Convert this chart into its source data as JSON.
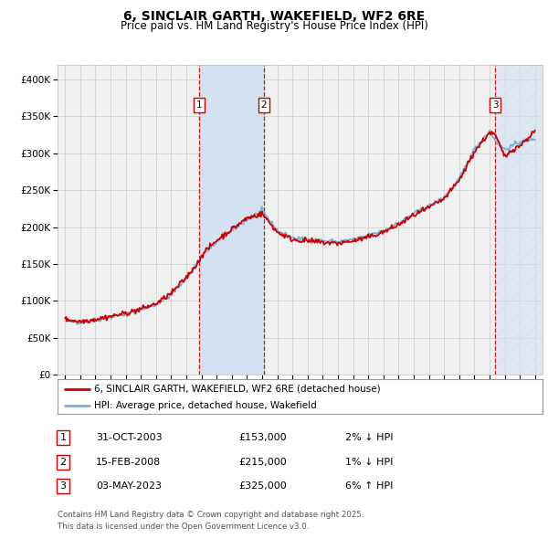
{
  "title": "6, SINCLAIR GARTH, WAKEFIELD, WF2 6RE",
  "subtitle": "Price paid vs. HM Land Registry's House Price Index (HPI)",
  "legend_line1": "6, SINCLAIR GARTH, WAKEFIELD, WF2 6RE (detached house)",
  "legend_line2": "HPI: Average price, detached house, Wakefield",
  "footer1": "Contains HM Land Registry data © Crown copyright and database right 2025.",
  "footer2": "This data is licensed under the Open Government Licence v3.0.",
  "transactions": [
    {
      "num": 1,
      "date": "31-OCT-2003",
      "price": 153000,
      "pct": "2%",
      "dir": "↓",
      "year_x": 2003.83
    },
    {
      "num": 2,
      "date": "15-FEB-2008",
      "price": 215000,
      "pct": "1%",
      "dir": "↓",
      "year_x": 2008.12
    },
    {
      "num": 3,
      "date": "03-MAY-2023",
      "price": 325000,
      "pct": "6%",
      "dir": "↑",
      "year_x": 2023.37
    }
  ],
  "hpi_color": "#7ab0d4",
  "price_color": "#cc0000",
  "background_color": "#ffffff",
  "plot_bg_color": "#f0f0f0",
  "shade_color": "#d0e0f0",
  "grid_color": "#cccccc",
  "ylim": [
    0,
    420000
  ],
  "yticks": [
    0,
    50000,
    100000,
    150000,
    200000,
    250000,
    300000,
    350000,
    400000
  ],
  "xlim": [
    1994.5,
    2026.5
  ],
  "xticks": [
    1995,
    1996,
    1997,
    1998,
    1999,
    2000,
    2001,
    2002,
    2003,
    2004,
    2005,
    2006,
    2007,
    2008,
    2009,
    2010,
    2011,
    2012,
    2013,
    2014,
    2015,
    2016,
    2017,
    2018,
    2019,
    2020,
    2021,
    2022,
    2023,
    2024,
    2025,
    2026
  ],
  "hpi_nodes_t": [
    1995,
    1996,
    1997,
    1998,
    1999,
    2000,
    2001,
    2002,
    2003,
    2004,
    2005,
    2006,
    2007,
    2008,
    2009,
    2010,
    2011,
    2012,
    2013,
    2014,
    2015,
    2016,
    2017,
    2018,
    2019,
    2020,
    2021,
    2022,
    2023,
    2023.5,
    2024,
    2024.5,
    2025,
    2026
  ],
  "hpi_nodes_v": [
    73000,
    71000,
    74000,
    78000,
    82000,
    88000,
    95000,
    108000,
    130000,
    160000,
    180000,
    195000,
    210000,
    222000,
    195000,
    185000,
    183000,
    181000,
    180000,
    183000,
    188000,
    195000,
    205000,
    218000,
    228000,
    240000,
    265000,
    305000,
    330000,
    315000,
    305000,
    310000,
    315000,
    320000
  ],
  "price_nodes_t": [
    1995,
    1996,
    1997,
    1998,
    1999,
    2000,
    2001,
    2002,
    2003,
    2003.83,
    2004,
    2005,
    2006,
    2007,
    2008,
    2008.12,
    2009,
    2010,
    2011,
    2012,
    2013,
    2014,
    2015,
    2016,
    2017,
    2018,
    2019,
    2020,
    2021,
    2022,
    2023,
    2023.37,
    2023.8,
    2024,
    2024.5,
    2025,
    2026
  ],
  "price_nodes_v": [
    75000,
    72000,
    75000,
    79000,
    83000,
    89000,
    96000,
    110000,
    132000,
    153000,
    162000,
    182000,
    197000,
    212000,
    218000,
    215000,
    193000,
    183000,
    181000,
    179000,
    178000,
    181000,
    186000,
    193000,
    203000,
    216000,
    226000,
    238000,
    263000,
    302000,
    328000,
    325000,
    305000,
    295000,
    305000,
    310000,
    330000
  ]
}
